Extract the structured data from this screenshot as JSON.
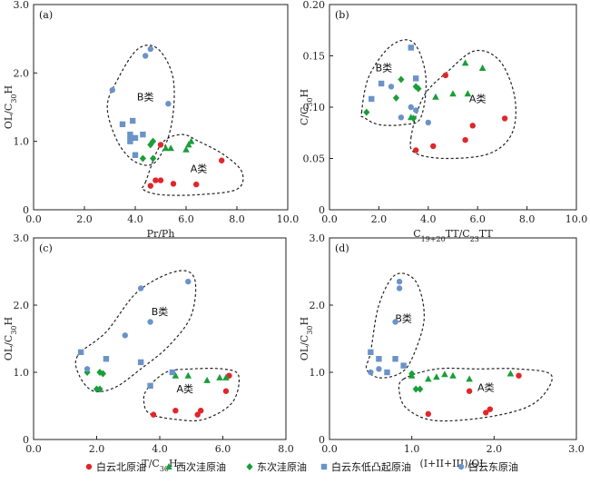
{
  "colors": {
    "baiyun_north": "#e0262b",
    "xici_west": "#1a9e3a",
    "dongci_west": "#1a9e3a",
    "baiyun_east_uplift": "#6b93c9",
    "baiyun_east": "#6b93c9"
  },
  "legend": [
    {
      "key": "baiyun_north",
      "marker": "circle",
      "label": "白云北原油"
    },
    {
      "key": "xici_west",
      "marker": "triangle",
      "label": "西次洼原油"
    },
    {
      "key": "dongci_west",
      "marker": "diamond",
      "label": "东次洼原油"
    },
    {
      "key": "baiyun_east_uplift",
      "marker": "square",
      "label": "白云东低凸起原油"
    },
    {
      "key": "baiyun_east",
      "marker": "circle",
      "label": "白云东原油"
    }
  ],
  "chart_data": [
    {
      "panel": "(a)",
      "type": "scatter",
      "xlabel": "Pr/Ph",
      "ylabel": "OL/C30H",
      "xlim": [
        0,
        10
      ],
      "ylim": [
        0,
        3.0
      ],
      "xticks": [
        "0.0",
        "2.0",
        "4.0",
        "6.0",
        "8.0",
        "10.0"
      ],
      "yticks": [
        "0",
        "1.0",
        "2.0",
        "3.0"
      ],
      "clusters": [
        {
          "label": "B类",
          "at": [
            4.4,
            1.6
          ]
        },
        {
          "label": "A类",
          "at": [
            6.5,
            0.55
          ]
        }
      ],
      "series": [
        {
          "key": "baiyun_north",
          "points": [
            [
              4.6,
              0.35
            ],
            [
              4.8,
              0.43
            ],
            [
              5.0,
              0.43
            ],
            [
              5.5,
              0.38
            ],
            [
              5.0,
              0.95
            ],
            [
              6.4,
              0.37
            ],
            [
              7.4,
              0.72
            ]
          ]
        },
        {
          "key": "xici_west",
          "points": [
            [
              5.2,
              0.9
            ],
            [
              5.4,
              0.9
            ],
            [
              6.0,
              0.88
            ],
            [
              6.1,
              0.95
            ],
            [
              6.2,
              1.0
            ]
          ]
        },
        {
          "key": "dongci_west",
          "points": [
            [
              4.3,
              0.75
            ],
            [
              4.6,
              0.95
            ],
            [
              4.7,
              1.0
            ],
            [
              4.7,
              0.75
            ]
          ]
        },
        {
          "key": "baiyun_east_uplift",
          "points": [
            [
              3.5,
              1.25
            ],
            [
              3.9,
              1.3
            ],
            [
              3.8,
              1.1
            ],
            [
              3.8,
              1.0
            ],
            [
              4.0,
              1.05
            ],
            [
              4.3,
              1.1
            ],
            [
              4.0,
              0.8
            ]
          ]
        },
        {
          "key": "baiyun_east",
          "points": [
            [
              3.1,
              1.75
            ],
            [
              4.4,
              2.25
            ],
            [
              4.6,
              2.35
            ],
            [
              5.3,
              1.55
            ],
            [
              3.8,
              1.05
            ]
          ]
        }
      ]
    },
    {
      "panel": "(b)",
      "type": "scatter",
      "xlabel": "C19+20TT/C23TT",
      "ylabel": "C/C30H",
      "xlim": [
        0,
        10
      ],
      "ylim": [
        0,
        0.2
      ],
      "xticks": [
        "0.0",
        "2.0",
        "4.0",
        "6.0",
        "8.0",
        "10.0"
      ],
      "yticks": [
        "0",
        "0.05",
        "0.10",
        "0.15",
        "0.20"
      ],
      "clusters": [
        {
          "label": "B类",
          "at": [
            2.2,
            0.135
          ]
        },
        {
          "label": "A类",
          "at": [
            6.0,
            0.105
          ]
        }
      ],
      "series": [
        {
          "key": "baiyun_north",
          "points": [
            [
              3.5,
              0.058
            ],
            [
              4.2,
              0.062
            ],
            [
              5.5,
              0.068
            ],
            [
              5.8,
              0.082
            ],
            [
              4.7,
              0.131
            ],
            [
              7.1,
              0.089
            ]
          ]
        },
        {
          "key": "xici_west",
          "points": [
            [
              3.3,
              0.09
            ],
            [
              4.3,
              0.11
            ],
            [
              5.0,
              0.113
            ],
            [
              5.5,
              0.143
            ],
            [
              6.2,
              0.138
            ],
            [
              5.6,
              0.113
            ]
          ]
        },
        {
          "key": "dongci_west",
          "points": [
            [
              1.5,
              0.095
            ],
            [
              2.7,
              0.109
            ],
            [
              2.9,
              0.127
            ],
            [
              3.5,
              0.12
            ],
            [
              3.6,
              0.118
            ],
            [
              3.4,
              0.089
            ]
          ]
        },
        {
          "key": "baiyun_east_uplift",
          "points": [
            [
              1.7,
              0.108
            ],
            [
              2.1,
              0.123
            ],
            [
              3.3,
              0.158
            ],
            [
              3.5,
              0.128
            ]
          ]
        },
        {
          "key": "baiyun_east",
          "points": [
            [
              2.5,
              0.12
            ],
            [
              2.9,
              0.09
            ],
            [
              3.3,
              0.1
            ],
            [
              3.5,
              0.097
            ],
            [
              4.0,
              0.085
            ]
          ]
        }
      ]
    },
    {
      "panel": "(c)",
      "type": "scatter",
      "xlabel": "T/C30H",
      "ylabel": "OL/C30H",
      "xlim": [
        0,
        8.0
      ],
      "ylim": [
        0,
        3.0
      ],
      "xticks": [
        "0.0",
        "2.0",
        "4.0",
        "6.0",
        "8.0"
      ],
      "yticks": [
        "0",
        "1.0",
        "2.0",
        "3.0"
      ],
      "clusters": [
        {
          "label": "B类",
          "at": [
            4.0,
            1.85
          ]
        },
        {
          "label": "A类",
          "at": [
            4.8,
            0.7
          ]
        }
      ],
      "series": [
        {
          "key": "baiyun_north",
          "points": [
            [
              3.8,
              0.37
            ],
            [
              4.5,
              0.43
            ],
            [
              5.2,
              0.37
            ],
            [
              5.3,
              0.43
            ],
            [
              6.1,
              0.72
            ],
            [
              6.2,
              0.95
            ]
          ]
        },
        {
          "key": "xici_west",
          "points": [
            [
              4.5,
              0.95
            ],
            [
              4.9,
              0.95
            ],
            [
              5.5,
              0.88
            ],
            [
              5.9,
              0.92
            ],
            [
              6.1,
              0.92
            ]
          ]
        },
        {
          "key": "dongci_west",
          "points": [
            [
              1.7,
              1.0
            ],
            [
              2.0,
              0.75
            ],
            [
              2.1,
              0.75
            ],
            [
              2.1,
              1.0
            ],
            [
              2.2,
              0.98
            ]
          ]
        },
        {
          "key": "baiyun_east_uplift",
          "points": [
            [
              1.5,
              1.3
            ],
            [
              2.3,
              1.2
            ],
            [
              3.4,
              1.15
            ],
            [
              3.7,
              0.8
            ],
            [
              4.4,
              1.0
            ]
          ]
        },
        {
          "key": "baiyun_east",
          "points": [
            [
              1.7,
              1.05
            ],
            [
              2.9,
              1.55
            ],
            [
              3.4,
              2.25
            ],
            [
              3.7,
              1.75
            ],
            [
              4.9,
              2.35
            ]
          ]
        }
      ]
    },
    {
      "panel": "(d)",
      "type": "scatter",
      "xlabel": "(I+II+III)/OL",
      "ylabel": "OL/C30H",
      "xlim": [
        0,
        3.0
      ],
      "ylim": [
        0,
        3.0
      ],
      "xticks": [
        "0.0",
        "1.0",
        "2.0",
        "3.0"
      ],
      "yticks": [
        "0",
        "1.0",
        "2.0",
        "3.0"
      ],
      "clusters": [
        {
          "label": "B类",
          "at": [
            0.9,
            1.75
          ]
        },
        {
          "label": "A类",
          "at": [
            1.9,
            0.72
          ]
        }
      ],
      "series": [
        {
          "key": "baiyun_north",
          "points": [
            [
              1.2,
              0.38
            ],
            [
              1.7,
              0.72
            ],
            [
              1.9,
              0.4
            ],
            [
              1.95,
              0.45
            ],
            [
              2.3,
              0.95
            ]
          ]
        },
        {
          "key": "xici_west",
          "points": [
            [
              1.0,
              0.95
            ],
            [
              1.2,
              0.9
            ],
            [
              1.3,
              0.93
            ],
            [
              1.4,
              0.97
            ],
            [
              1.5,
              0.95
            ],
            [
              1.7,
              0.9
            ],
            [
              2.2,
              0.98
            ]
          ]
        },
        {
          "key": "dongci_west",
          "points": [
            [
              1.0,
              0.98
            ],
            [
              1.05,
              0.75
            ],
            [
              1.1,
              0.75
            ]
          ]
        },
        {
          "key": "baiyun_east_uplift",
          "points": [
            [
              0.5,
              1.3
            ],
            [
              0.6,
              1.2
            ],
            [
              0.7,
              1.0
            ],
            [
              0.8,
              1.2
            ],
            [
              0.9,
              1.1
            ]
          ]
        },
        {
          "key": "baiyun_east",
          "points": [
            [
              0.5,
              1.0
            ],
            [
              0.6,
              1.05
            ],
            [
              0.8,
              1.75
            ],
            [
              0.85,
              2.25
            ],
            [
              0.85,
              2.35
            ]
          ]
        }
      ]
    }
  ]
}
